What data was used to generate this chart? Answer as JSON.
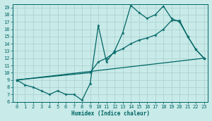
{
  "xlabel": "Humidex (Indice chaleur)",
  "bg_color": "#c8eae8",
  "line_color": "#006666",
  "grid_color": "#a8d0ce",
  "xlim": [
    -0.5,
    23.5
  ],
  "ylim": [
    6,
    19.5
  ],
  "xticks": [
    0,
    1,
    2,
    3,
    4,
    5,
    6,
    7,
    8,
    9,
    10,
    11,
    12,
    13,
    14,
    15,
    16,
    17,
    18,
    19,
    20,
    21,
    22,
    23
  ],
  "yticks": [
    6,
    7,
    8,
    9,
    10,
    11,
    12,
    13,
    14,
    15,
    16,
    17,
    18,
    19
  ],
  "line1_x": [
    0,
    1,
    2,
    3,
    4,
    5,
    6,
    7,
    8,
    9,
    10,
    11,
    12,
    13,
    14,
    15,
    16,
    17,
    18,
    19,
    20,
    21,
    22,
    23
  ],
  "line1_y": [
    9.0,
    8.3,
    8.0,
    7.5,
    7.0,
    7.5,
    7.0,
    7.0,
    6.2,
    8.5,
    16.5,
    11.5,
    13.0,
    15.5,
    19.3,
    18.3,
    17.5,
    18.0,
    19.2,
    17.5,
    17.0,
    15.0,
    13.2,
    12.0
  ],
  "line2_x": [
    0,
    9,
    10,
    11,
    12,
    13,
    14,
    15,
    16,
    17,
    18,
    19,
    20,
    21,
    22,
    23
  ],
  "line2_y": [
    9.0,
    10.0,
    11.5,
    12.0,
    12.8,
    13.3,
    14.0,
    14.5,
    14.8,
    15.2,
    16.0,
    17.2,
    17.2,
    15.0,
    13.2,
    12.0
  ],
  "line3_x": [
    0,
    23
  ],
  "line3_y": [
    9.0,
    12.0
  ]
}
